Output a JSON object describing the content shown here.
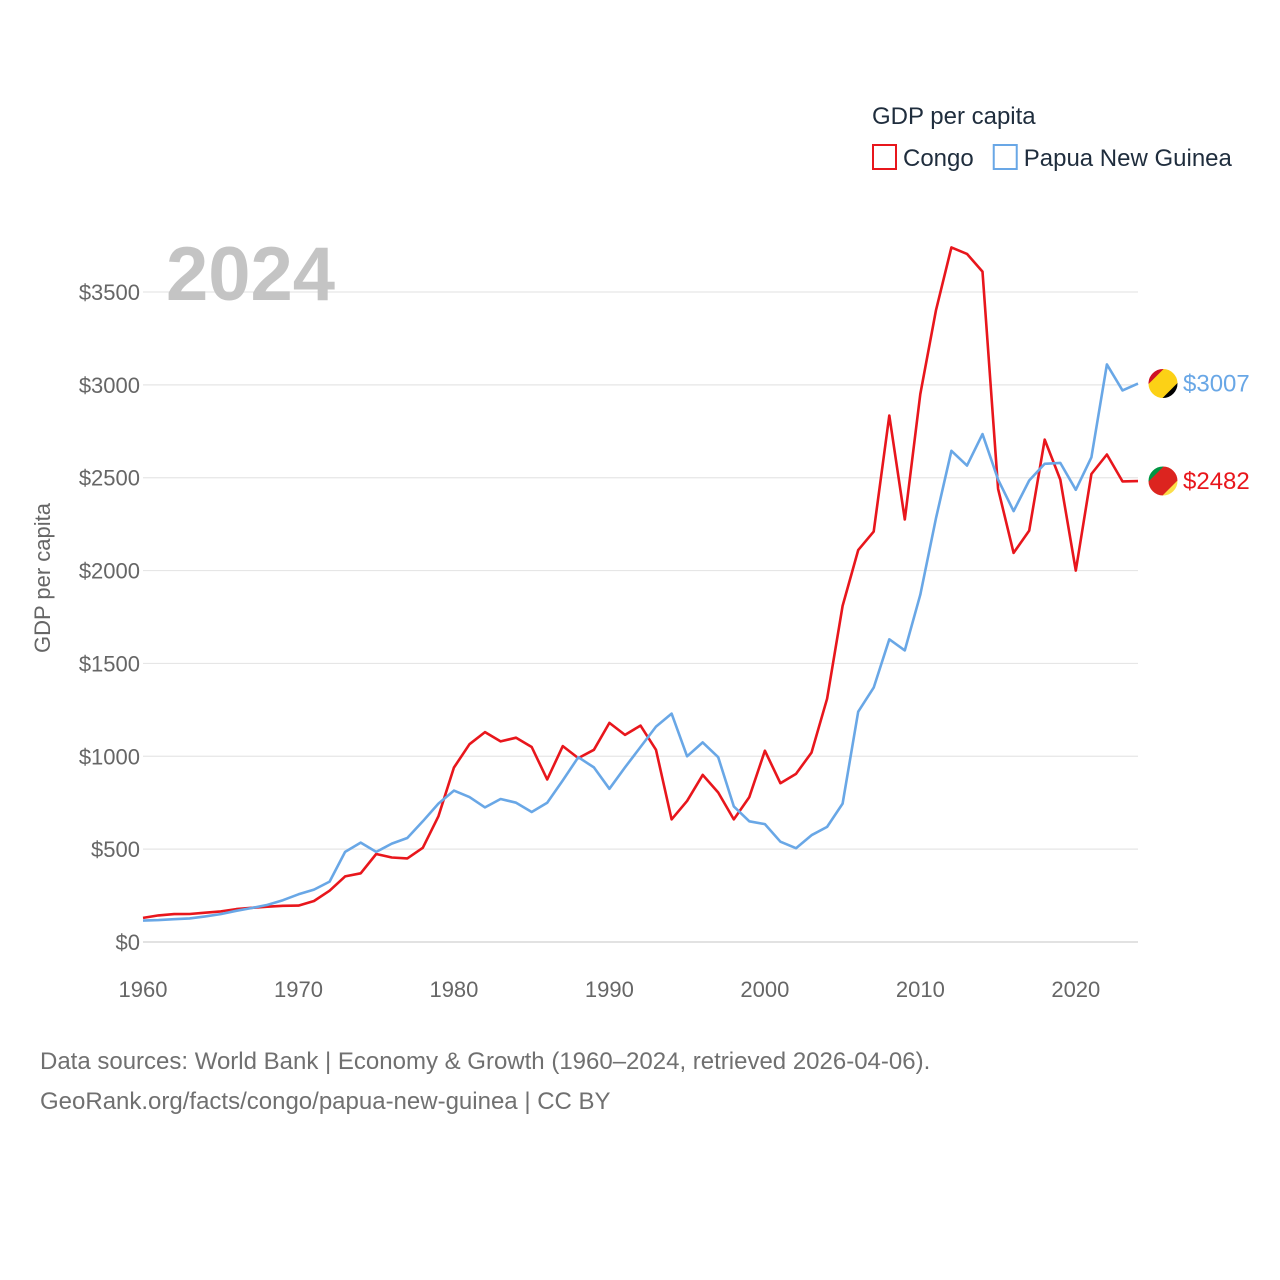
{
  "chart_data": {
    "type": "line",
    "title": "GDP per capita",
    "highlight_year": "2024",
    "ylabel": "GDP per capita",
    "xlabel": "",
    "xlim": [
      1960,
      2024
    ],
    "ylim": [
      0,
      3750
    ],
    "x_ticks": [
      1960,
      1970,
      1980,
      1990,
      2000,
      2010,
      2020
    ],
    "x_tick_labels": [
      "1960",
      "1970",
      "1980",
      "1990",
      "2000",
      "2010",
      "2020"
    ],
    "y_ticks": [
      0,
      500,
      1000,
      1500,
      2000,
      2500,
      3000,
      3500
    ],
    "y_tick_labels": [
      "$0",
      "$500",
      "$1000",
      "$1500",
      "$2000",
      "$2500",
      "$3000",
      "$3500"
    ],
    "grid": true,
    "legend": {
      "title": "GDP per capita",
      "placement": "top-right"
    },
    "x": [
      1960,
      1961,
      1962,
      1963,
      1964,
      1965,
      1966,
      1967,
      1968,
      1969,
      1970,
      1971,
      1972,
      1973,
      1974,
      1975,
      1976,
      1977,
      1978,
      1979,
      1980,
      1981,
      1982,
      1983,
      1984,
      1985,
      1986,
      1987,
      1988,
      1989,
      1990,
      1991,
      1992,
      1993,
      1994,
      1995,
      1996,
      1997,
      1998,
      1999,
      2000,
      2001,
      2002,
      2003,
      2004,
      2005,
      2006,
      2007,
      2008,
      2009,
      2010,
      2011,
      2012,
      2013,
      2014,
      2015,
      2016,
      2017,
      2018,
      2019,
      2020,
      2021,
      2022,
      2023,
      2024
    ],
    "series": [
      {
        "name": "Congo",
        "color": "#e8161c",
        "end_label": "$2482",
        "flag_colors": [
          "#009543",
          "#fbde4a",
          "#dc241f"
        ],
        "values": [
          130,
          143,
          150,
          151,
          158,
          165,
          177,
          184,
          190,
          195,
          196,
          221,
          276,
          353,
          370,
          474,
          455,
          450,
          507,
          677,
          939,
          1065,
          1130,
          1080,
          1100,
          1050,
          875,
          1055,
          990,
          1035,
          1180,
          1115,
          1165,
          1035,
          660,
          760,
          900,
          805,
          660,
          780,
          1030,
          855,
          905,
          1020,
          1310,
          1810,
          2110,
          2210,
          2835,
          2275,
          2950,
          3400,
          3740,
          3705,
          3610,
          2440,
          2095,
          2215,
          2705,
          2490,
          2000,
          2520,
          2625,
          2480,
          2482
        ]
      },
      {
        "name": "Papua New Guinea",
        "color": "#69a7e6",
        "end_label": "$3007",
        "flag_colors": [
          "#ce1126",
          "#000000",
          "#fcd116"
        ],
        "values": [
          115,
          118,
          123,
          127,
          138,
          150,
          168,
          183,
          200,
          225,
          257,
          282,
          325,
          485,
          535,
          485,
          530,
          560,
          650,
          745,
          815,
          780,
          725,
          770,
          750,
          700,
          750,
          870,
          995,
          940,
          825,
          940,
          1050,
          1160,
          1230,
          1000,
          1075,
          995,
          730,
          650,
          635,
          540,
          505,
          575,
          620,
          745,
          1240,
          1370,
          1630,
          1570,
          1870,
          2280,
          2645,
          2565,
          2735,
          2490,
          2320,
          2485,
          2575,
          2580,
          2435,
          2610,
          3110,
          2970,
          3007
        ]
      }
    ]
  },
  "footer": {
    "line1": "Data sources: World Bank | Economy & Growth (1960–2024, retrieved 2026-04-06).",
    "line2": "GeoRank.org/facts/congo/papua-new-guinea | CC BY"
  }
}
